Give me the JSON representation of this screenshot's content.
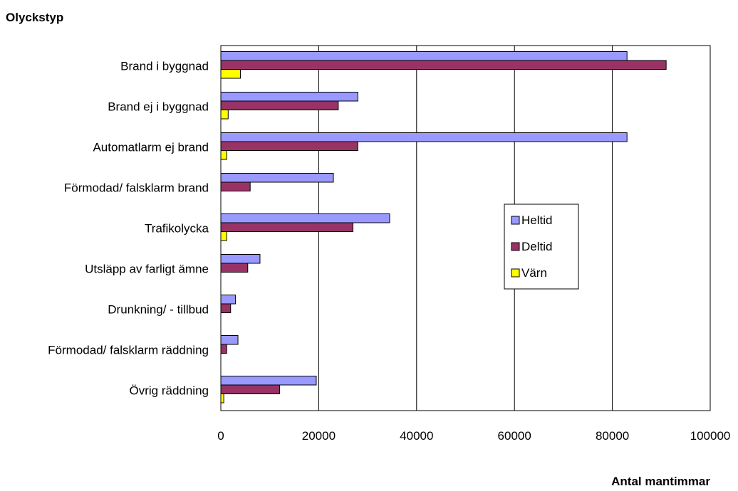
{
  "chart_data": {
    "type": "bar",
    "orientation": "horizontal",
    "ylabel": "Olyckstyp",
    "xlabel": "Antal mantimmar",
    "xlim": [
      0,
      100000
    ],
    "xticks": [
      "0",
      "20000",
      "40000",
      "60000",
      "80000",
      "100000"
    ],
    "grid": true,
    "legend_position": "right",
    "categories": [
      "Brand i byggnad",
      "Brand ej i byggnad",
      "Automatlarm ej brand",
      "Förmodad/ falsklarm brand",
      "Trafikolycka",
      "Utsläpp av farligt ämne",
      "Drunkning/ - tillbud",
      "Förmodad/ falsklarm räddning",
      "Övrig räddning"
    ],
    "series": [
      {
        "name": "Heltid",
        "color": "#9999ff",
        "values": [
          83000,
          28000,
          83000,
          23000,
          34500,
          8000,
          3000,
          3500,
          19500
        ]
      },
      {
        "name": "Deltid",
        "color": "#993366",
        "values": [
          91000,
          24000,
          28000,
          6000,
          27000,
          5500,
          2000,
          1200,
          12000
        ]
      },
      {
        "name": "Värn",
        "color": "#ffff00",
        "values": [
          4000,
          1500,
          1200,
          0,
          1200,
          0,
          0,
          0,
          600
        ]
      }
    ]
  }
}
